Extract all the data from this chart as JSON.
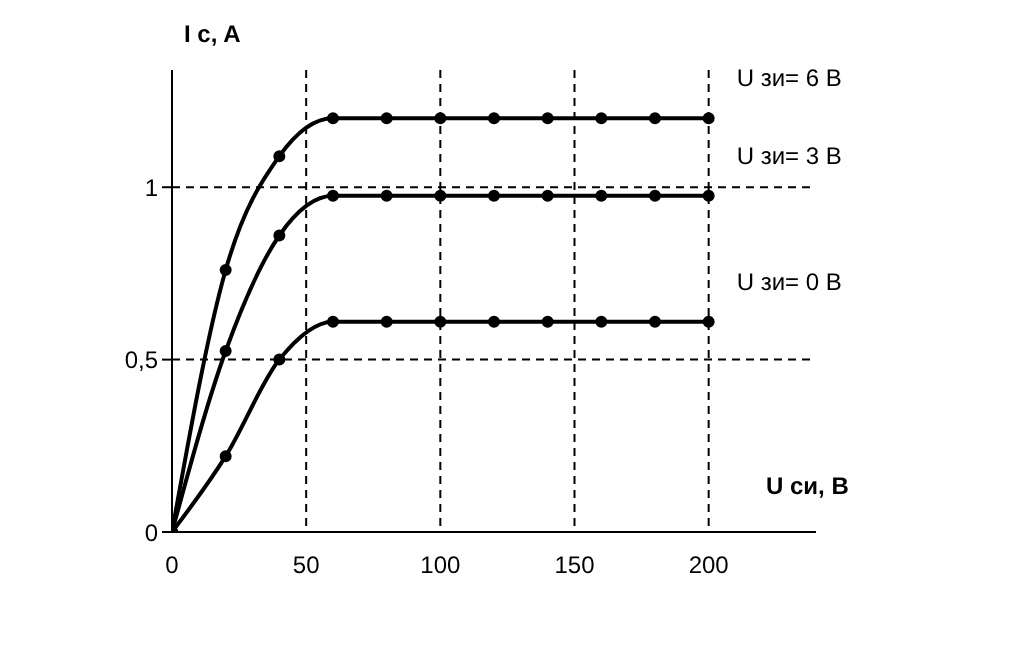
{
  "chart_data": {
    "type": "line",
    "xlabel": "U си, В",
    "ylabel": "I c, A",
    "x": [
      0,
      20,
      40,
      60,
      80,
      100,
      120,
      140,
      160,
      180,
      200
    ],
    "series": [
      {
        "name": "U зи= 6 В",
        "color": "#000000",
        "values": [
          0,
          0.76,
          1.09,
          1.2,
          1.2,
          1.2,
          1.2,
          1.2,
          1.2,
          1.2,
          1.2
        ]
      },
      {
        "name": "U зи= 3 В",
        "color": "#000000",
        "values": [
          0,
          0.525,
          0.86,
          0.975,
          0.975,
          0.975,
          0.975,
          0.975,
          0.975,
          0.975,
          0.975
        ]
      },
      {
        "name": "U зи= 0 В",
        "color": "#000000",
        "values": [
          0,
          0.22,
          0.5,
          0.61,
          0.61,
          0.61,
          0.61,
          0.61,
          0.61,
          0.61,
          0.61
        ]
      }
    ],
    "xlim": [
      0,
      240
    ],
    "xticks": [
      0,
      50,
      100,
      150,
      200
    ],
    "ylim": [
      0,
      1.34
    ],
    "yticks": [
      0,
      {
        "value": 0.5,
        "label": "0,5"
      },
      1
    ],
    "grid": true,
    "marker": "circle",
    "line_style": "solid"
  }
}
